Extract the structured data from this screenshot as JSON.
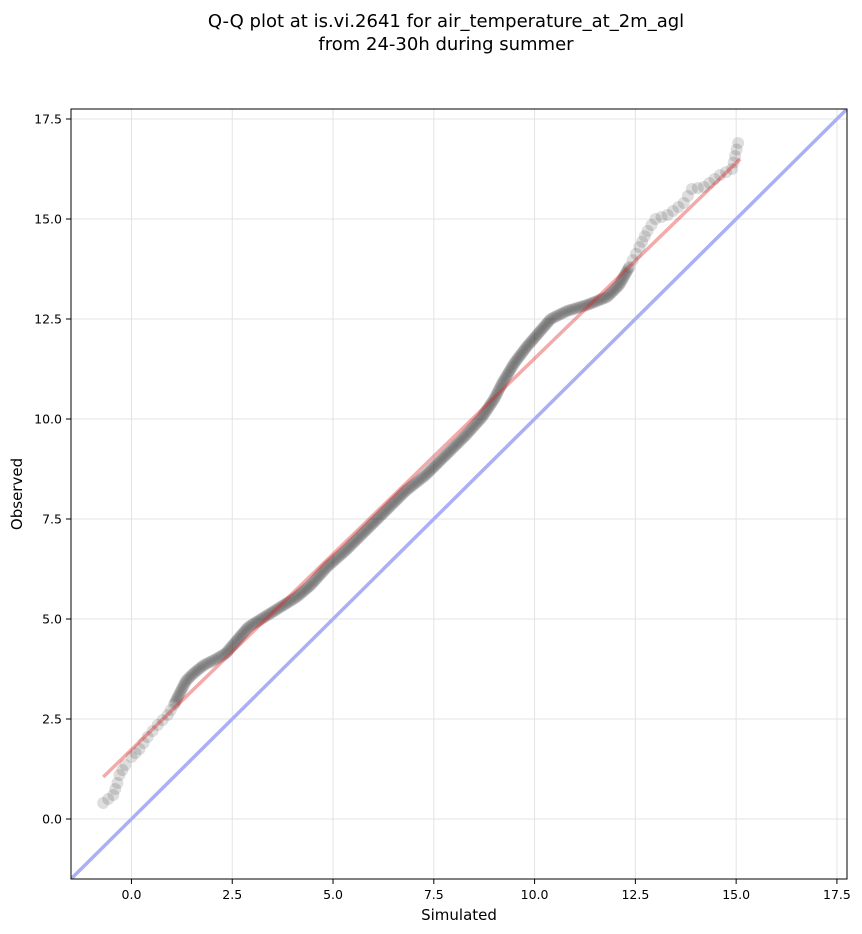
{
  "chart_data": {
    "type": "scatter",
    "title": [
      "Q-Q plot at is.vi.2641 for air_temperature_at_2m_agl",
      "from 24-30h during summer"
    ],
    "xlabel": "Simulated",
    "ylabel": "Observed",
    "xlim": [
      -1.5,
      17.75
    ],
    "ylim": [
      -1.5,
      17.75
    ],
    "xticks": [
      0.0,
      2.5,
      5.0,
      7.5,
      10.0,
      12.5,
      15.0,
      17.5
    ],
    "yticks": [
      0.0,
      2.5,
      5.0,
      7.5,
      10.0,
      12.5,
      15.0,
      17.5
    ],
    "xtick_labels": [
      "0.0",
      "2.5",
      "5.0",
      "7.5",
      "10.0",
      "12.5",
      "15.0",
      "17.5"
    ],
    "ytick_labels": [
      "0.0",
      "2.5",
      "5.0",
      "7.5",
      "10.0",
      "12.5",
      "15.0",
      "17.5"
    ],
    "grid": true,
    "point_color": "#000000",
    "quantile_curve": [
      [
        -0.7,
        0.4
      ],
      [
        -0.45,
        0.6
      ],
      [
        -0.35,
        0.9
      ],
      [
        -0.3,
        1.1
      ],
      [
        -0.15,
        1.35
      ],
      [
        0.0,
        1.55
      ],
      [
        0.2,
        1.75
      ],
      [
        0.4,
        2.05
      ],
      [
        0.65,
        2.35
      ],
      [
        0.9,
        2.6
      ],
      [
        1.05,
        2.85
      ],
      [
        1.2,
        3.15
      ],
      [
        1.35,
        3.45
      ],
      [
        1.55,
        3.65
      ],
      [
        1.8,
        3.85
      ],
      [
        2.1,
        4.0
      ],
      [
        2.35,
        4.15
      ],
      [
        2.6,
        4.45
      ],
      [
        2.9,
        4.8
      ],
      [
        3.3,
        5.05
      ],
      [
        3.7,
        5.3
      ],
      [
        4.1,
        5.55
      ],
      [
        4.45,
        5.85
      ],
      [
        4.85,
        6.3
      ],
      [
        5.3,
        6.7
      ],
      [
        5.8,
        7.2
      ],
      [
        6.3,
        7.7
      ],
      [
        6.8,
        8.2
      ],
      [
        7.3,
        8.6
      ],
      [
        7.8,
        9.1
      ],
      [
        8.3,
        9.6
      ],
      [
        8.7,
        10.05
      ],
      [
        9.0,
        10.5
      ],
      [
        9.2,
        10.9
      ],
      [
        9.5,
        11.4
      ],
      [
        9.8,
        11.8
      ],
      [
        10.1,
        12.15
      ],
      [
        10.4,
        12.5
      ],
      [
        10.8,
        12.7
      ],
      [
        11.3,
        12.85
      ],
      [
        11.8,
        13.05
      ],
      [
        12.1,
        13.35
      ],
      [
        12.35,
        13.8
      ],
      [
        12.6,
        14.3
      ],
      [
        12.8,
        14.7
      ],
      [
        13.0,
        15.0
      ],
      [
        13.3,
        15.1
      ],
      [
        13.7,
        15.4
      ],
      [
        13.9,
        15.75
      ],
      [
        14.2,
        15.8
      ],
      [
        14.6,
        16.1
      ],
      [
        14.9,
        16.25
      ],
      [
        15.05,
        16.9
      ]
    ],
    "fit_line": {
      "color": "#f2a0a0",
      "points": [
        [
          -0.7,
          1.05
        ],
        [
          15.1,
          16.5
        ]
      ]
    },
    "identity_line": {
      "color": "#aab0f5",
      "points": [
        [
          -1.5,
          -1.5
        ],
        [
          17.75,
          17.75
        ]
      ]
    }
  }
}
